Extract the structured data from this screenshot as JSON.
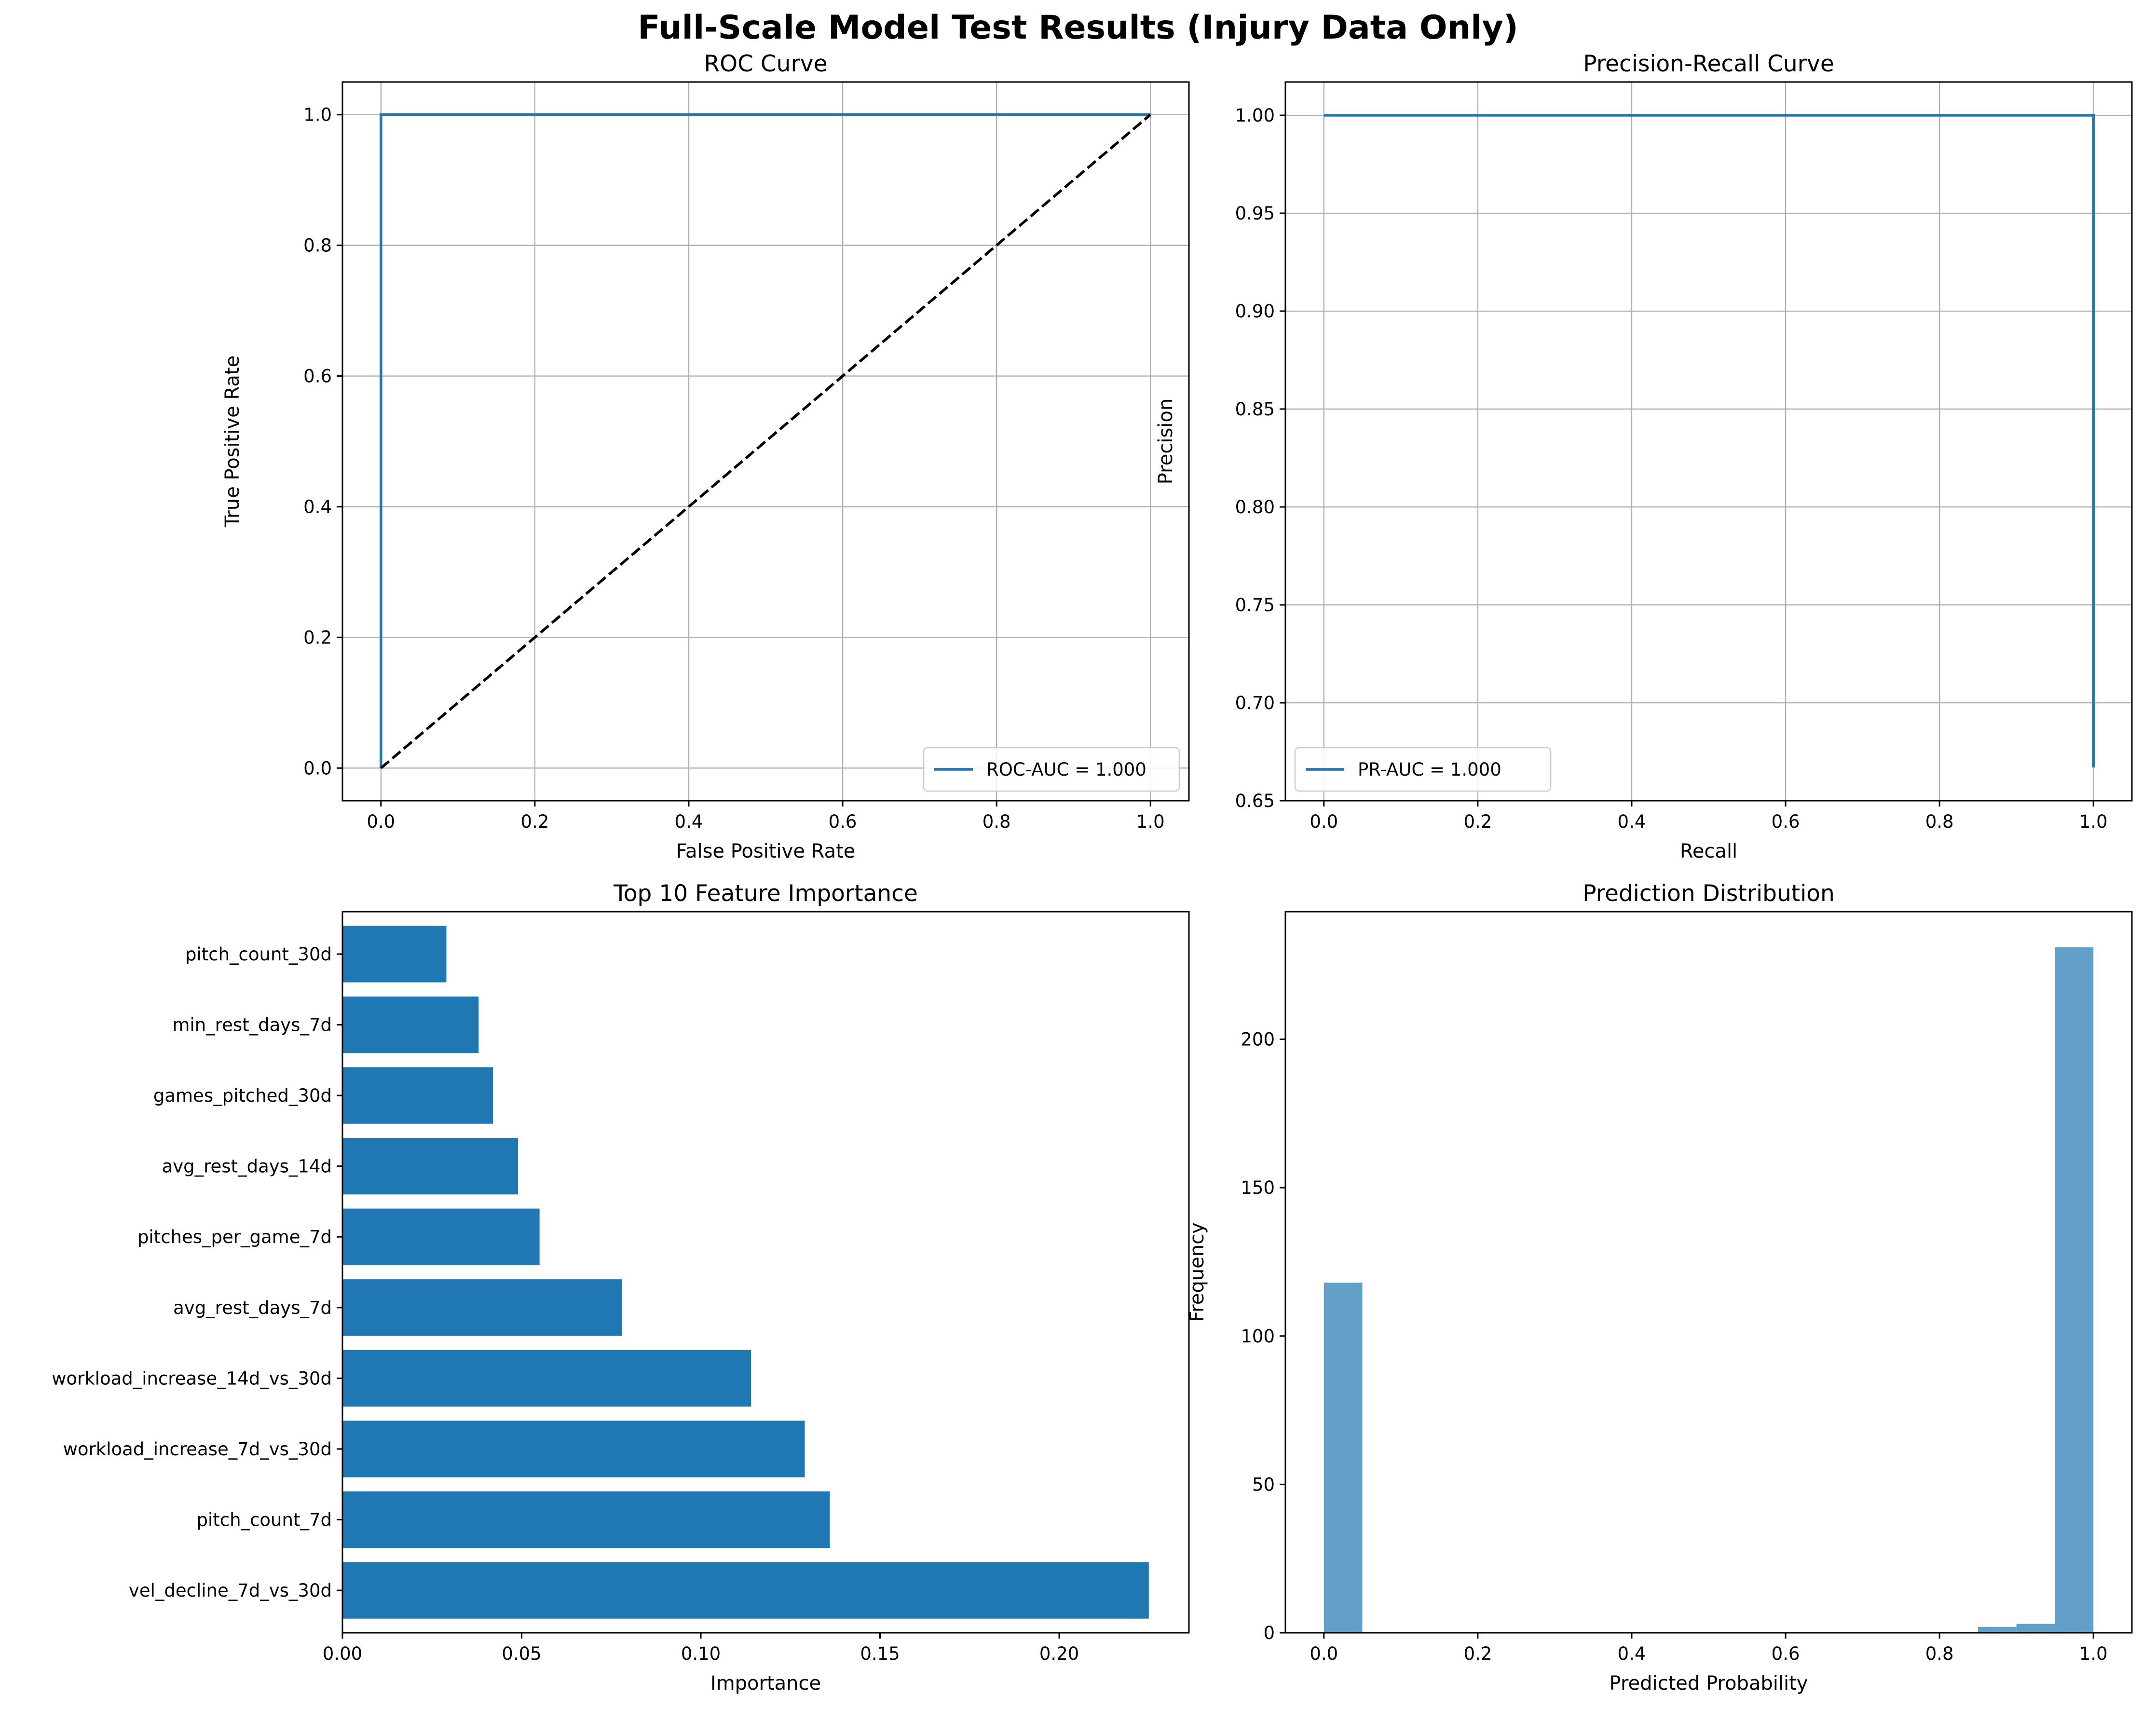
{
  "figure": {
    "title": "Full-Scale Model Test Results (Injury Data Only)"
  },
  "chart_data": [
    {
      "type": "line",
      "title": "ROC Curve",
      "xlabel": "False Positive Rate",
      "ylabel": "True Positive Rate",
      "xlim": [
        -0.05,
        1.05
      ],
      "ylim": [
        -0.05,
        1.05
      ],
      "xticks": [
        "0.0",
        "0.2",
        "0.4",
        "0.6",
        "0.8",
        "1.0"
      ],
      "yticks": [
        "0.0",
        "0.2",
        "0.4",
        "0.6",
        "0.8",
        "1.0"
      ],
      "grid": true,
      "legend": "lower right",
      "series": [
        {
          "name": "ROC-AUC = 1.000",
          "color": "#1f77b4",
          "x": [
            0.0,
            0.0,
            1.0
          ],
          "y": [
            0.0,
            1.0,
            1.0
          ]
        },
        {
          "color": "#000000",
          "dashed": true,
          "x": [
            0.0,
            1.0
          ],
          "y": [
            0.0,
            1.0
          ]
        }
      ]
    },
    {
      "type": "line",
      "title": "Precision-Recall Curve",
      "xlabel": "Recall",
      "ylabel": "Precision",
      "xlim": [
        -0.05,
        1.05
      ],
      "ylim": [
        0.65,
        1.017
      ],
      "xticks": [
        "0.0",
        "0.2",
        "0.4",
        "0.6",
        "0.8",
        "1.0"
      ],
      "yticks": [
        "0.65",
        "0.70",
        "0.75",
        "0.80",
        "0.85",
        "0.90",
        "0.95",
        "1.00"
      ],
      "grid": true,
      "legend": "lower left",
      "series": [
        {
          "name": "PR-AUC = 1.000",
          "color": "#1f77b4",
          "x": [
            0.0,
            1.0,
            1.0
          ],
          "y": [
            1.0,
            1.0,
            0.667
          ]
        }
      ]
    },
    {
      "type": "bar",
      "orientation": "horizontal",
      "title": "Top 10 Feature Importance",
      "xlabel": "Importance",
      "xlim": [
        0.0,
        0.2362
      ],
      "xticks": [
        "0.00",
        "0.05",
        "0.10",
        "0.15",
        "0.20"
      ],
      "color": "#1f77b4",
      "categories": [
        "vel_decline_7d_vs_30d",
        "pitch_count_7d",
        "workload_increase_7d_vs_30d",
        "workload_increase_14d_vs_30d",
        "avg_rest_days_7d",
        "pitches_per_game_7d",
        "avg_rest_days_14d",
        "games_pitched_30d",
        "min_rest_days_7d",
        "pitch_count_30d"
      ],
      "values": [
        0.225,
        0.136,
        0.129,
        0.114,
        0.078,
        0.055,
        0.049,
        0.042,
        0.038,
        0.029
      ]
    },
    {
      "type": "bar",
      "subtype": "histogram",
      "title": "Prediction Distribution",
      "xlabel": "Predicted Probability",
      "ylabel": "Frequency",
      "xlim": [
        -0.05,
        1.05
      ],
      "ylim": [
        0,
        243
      ],
      "xticks": [
        "0.0",
        "0.2",
        "0.4",
        "0.6",
        "0.8",
        "1.0"
      ],
      "yticks": [
        "0",
        "50",
        "100",
        "150",
        "200"
      ],
      "color": "#1f77b4",
      "alpha": 0.7,
      "bins": [
        {
          "x0": 0.0,
          "x1": 0.05,
          "count": 118
        },
        {
          "x0": 0.85,
          "x1": 0.9,
          "count": 2
        },
        {
          "x0": 0.9,
          "x1": 0.95,
          "count": 3
        },
        {
          "x0": 0.95,
          "x1": 1.0,
          "count": 231
        }
      ]
    }
  ]
}
